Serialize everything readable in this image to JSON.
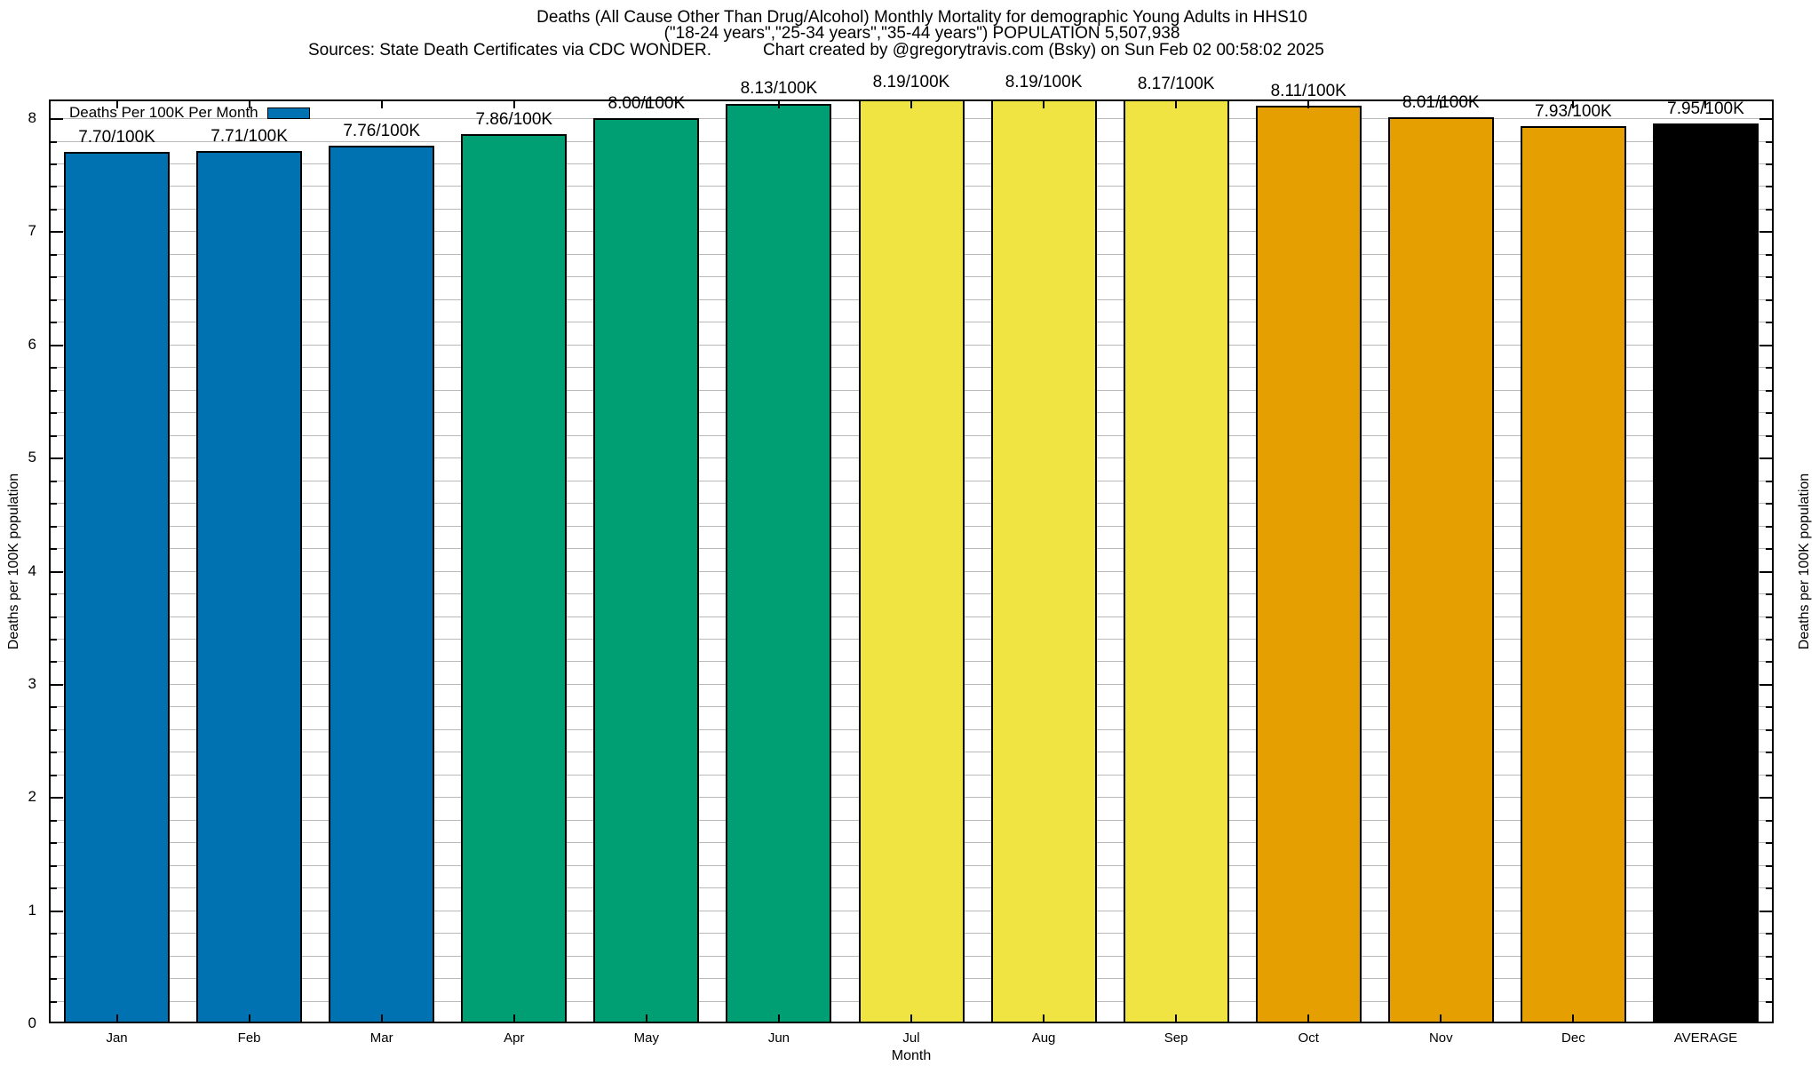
{
  "title": {
    "line1": "Deaths (All Cause Other Than Drug/Alcohol) Monthly Mortality for demographic Young Adults in HHS10",
    "line2": "(\"18-24 years\",\"25-34 years\",\"35-44 years\") POPULATION 5,507,938",
    "line3_left": "Sources: State Death Certificates via CDC WONDER.",
    "line3_right": "Chart created by @gregorytravis.com (Bsky) on Sun Feb 02 00:58:02 2025"
  },
  "legend": {
    "label": "Deaths Per 100K Per Month",
    "swatch_color": "#0072B2"
  },
  "axes": {
    "x_label": "Month",
    "y_left_label": "Deaths per 100K population",
    "y_right_label": "Deaths per 100K population"
  },
  "colors": {
    "blue": "#0072B2",
    "green": "#009E73",
    "yellow": "#F0E442",
    "orange": "#E69F00",
    "black": "#000000",
    "grid": "#b9b9b9",
    "frame": "#000000",
    "background": "#ffffff"
  },
  "chart_data": {
    "type": "bar",
    "title": "Deaths (All Cause Other Than Drug/Alcohol) Monthly Mortality for demographic Young Adults in HHS10 (\"18-24 years\",\"25-34 years\",\"35-44 years\") POPULATION 5,507,938",
    "categories": [
      "Jan",
      "Feb",
      "Mar",
      "Apr",
      "May",
      "Jun",
      "Jul",
      "Aug",
      "Sep",
      "Oct",
      "Nov",
      "Dec",
      "AVERAGE"
    ],
    "values": [
      7.7,
      7.71,
      7.76,
      7.86,
      8.0,
      8.13,
      8.19,
      8.19,
      8.17,
      8.11,
      8.01,
      7.93,
      7.95
    ],
    "value_labels": [
      "7.70/100K",
      "7.71/100K",
      "7.76/100K",
      "7.86/100K",
      "8.00/100K",
      "8.13/100K",
      "8.19/100K",
      "8.19/100K",
      "8.17/100K",
      "8.11/100K",
      "8.01/100K",
      "7.93/100K",
      "7.95/100K"
    ],
    "bar_colors": [
      "#0072B2",
      "#0072B2",
      "#0072B2",
      "#009E73",
      "#009E73",
      "#009E73",
      "#F0E442",
      "#F0E442",
      "#F0E442",
      "#E69F00",
      "#E69F00",
      "#E69F00",
      "#000000"
    ],
    "xlabel": "Month",
    "ylabel": "Deaths per 100K population",
    "ylim": [
      0,
      8.165
    ],
    "y_major_ticks": [
      0,
      1,
      2,
      3,
      4,
      5,
      6,
      7,
      8
    ],
    "y_minor_step": 0.2,
    "grid": "horizontal",
    "legend_position": "top-left"
  }
}
